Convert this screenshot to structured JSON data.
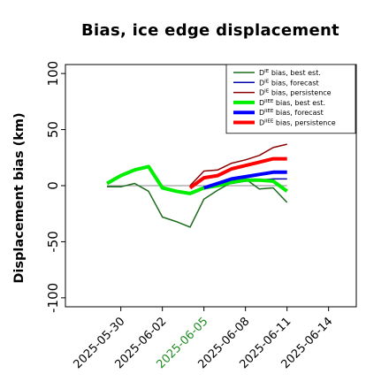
{
  "chart_data": {
    "type": "line",
    "title": "Bias, ice edge displacement",
    "ylabel": "Displacement bias (km)",
    "xlabel": "",
    "ylim": [
      -108,
      108
    ],
    "xlim": [
      "2025-05-26",
      "2025-06-16"
    ],
    "yticks": [
      -100,
      -50,
      0,
      50,
      100
    ],
    "xticks": [
      "2025-05-30",
      "2025-06-02",
      "2025-06-05",
      "2025-06-08",
      "2025-06-11",
      "2025-06-14"
    ],
    "highlight_xtick": "2025-06-05",
    "highlight_color": "#228B22",
    "grid": false,
    "legend_position": "top-right",
    "zero_line": {
      "value": 0,
      "color": "#888888"
    },
    "series": [
      {
        "name": "D^IE bias, best est.",
        "color": "#1b6b1b",
        "width": 1.5,
        "x": [
          "2025-05-29",
          "2025-05-30",
          "2025-05-31",
          "2025-06-01",
          "2025-06-02",
          "2025-06-03",
          "2025-06-04",
          "2025-06-05",
          "2025-06-06",
          "2025-06-07",
          "2025-06-08",
          "2025-06-09",
          "2025-06-10",
          "2025-06-11"
        ],
        "y": [
          -1,
          -1,
          2,
          -5,
          -28,
          -32,
          -37,
          -12,
          -4,
          3,
          6,
          -3,
          -2,
          -15
        ]
      },
      {
        "name": "D^IE bias, forecast",
        "color": "#0000aa",
        "width": 1.5,
        "x": [
          "2025-06-05",
          "2025-06-06",
          "2025-06-07",
          "2025-06-08",
          "2025-06-09",
          "2025-06-10",
          "2025-06-11"
        ],
        "y": [
          -3,
          0,
          2,
          4,
          5,
          6,
          6
        ]
      },
      {
        "name": "D^IE bias, persistence",
        "color": "#8b0000",
        "width": 1.5,
        "x": [
          "2025-06-04",
          "2025-06-05",
          "2025-06-06",
          "2025-06-07",
          "2025-06-08",
          "2025-06-09",
          "2025-06-10",
          "2025-06-11"
        ],
        "y": [
          0,
          13,
          14,
          20,
          23,
          27,
          34,
          37
        ]
      },
      {
        "name": "D^IIEE bias, best est.",
        "color": "#00ee00",
        "width": 4,
        "x": [
          "2025-05-29",
          "2025-05-30",
          "2025-05-31",
          "2025-06-01",
          "2025-06-02",
          "2025-06-03",
          "2025-06-04",
          "2025-06-05",
          "2025-06-06",
          "2025-06-07",
          "2025-06-08",
          "2025-06-09",
          "2025-06-10",
          "2025-06-11"
        ],
        "y": [
          2,
          9,
          14,
          17,
          -2,
          -5,
          -7,
          -2,
          0,
          3,
          5,
          5,
          4,
          -5
        ]
      },
      {
        "name": "D^IIEE bias, forecast",
        "color": "#0000ff",
        "width": 4,
        "x": [
          "2025-06-05",
          "2025-06-06",
          "2025-06-07",
          "2025-06-08",
          "2025-06-09",
          "2025-06-10",
          "2025-06-11"
        ],
        "y": [
          -2,
          2,
          6,
          8,
          10,
          12,
          12
        ]
      },
      {
        "name": "D^IIEE bias, persistence",
        "color": "#ff0000",
        "width": 4,
        "x": [
          "2025-06-04",
          "2025-06-05",
          "2025-06-06",
          "2025-06-07",
          "2025-06-08",
          "2025-06-09",
          "2025-06-10",
          "2025-06-11"
        ],
        "y": [
          -2,
          7,
          9,
          15,
          18,
          21,
          24,
          24
        ]
      }
    ]
  }
}
